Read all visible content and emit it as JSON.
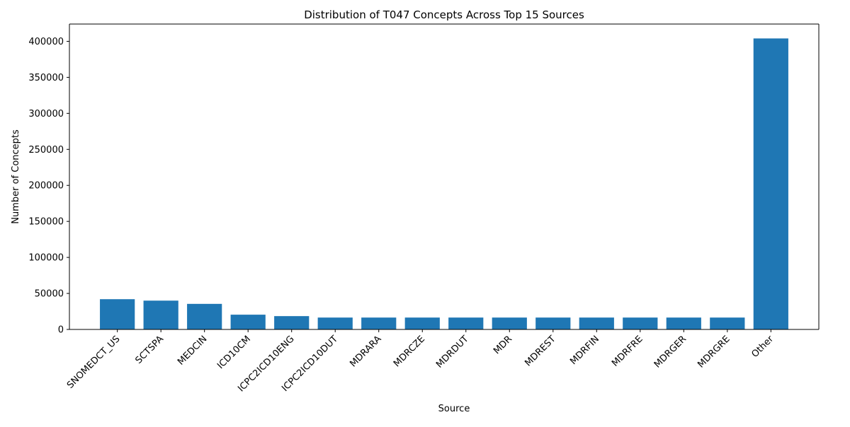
{
  "colors": {
    "bar": "#1f77b4",
    "axis": "#000000",
    "background": "#ffffff"
  },
  "chart_data": {
    "type": "bar",
    "title": "Distribution of T047 Concepts Across Top 15 Sources",
    "xlabel": "Source",
    "ylabel": "Number of Concepts",
    "categories": [
      "SNOMEDCT_US",
      "SCTSPA",
      "MEDCIN",
      "ICD10CM",
      "ICPC2ICD10ENG",
      "ICPC2ICD10DUT",
      "MDRARA",
      "MDRCZE",
      "MDRDUT",
      "MDR",
      "MDREST",
      "MDRFIN",
      "MDRFRE",
      "MDRGER",
      "MDRGRE",
      "Other"
    ],
    "values": [
      42000,
      40000,
      35500,
      20500,
      18500,
      16500,
      16500,
      16500,
      16500,
      16500,
      16500,
      16500,
      16500,
      16500,
      16500,
      404000
    ],
    "ylim": [
      0,
      424000
    ],
    "yticks": [
      0,
      50000,
      100000,
      150000,
      200000,
      250000,
      300000,
      350000,
      400000
    ],
    "ytick_labels": [
      "0",
      "50000",
      "100000",
      "150000",
      "200000",
      "250000",
      "300000",
      "350000",
      "400000"
    ],
    "grid": false,
    "legend": "none"
  }
}
